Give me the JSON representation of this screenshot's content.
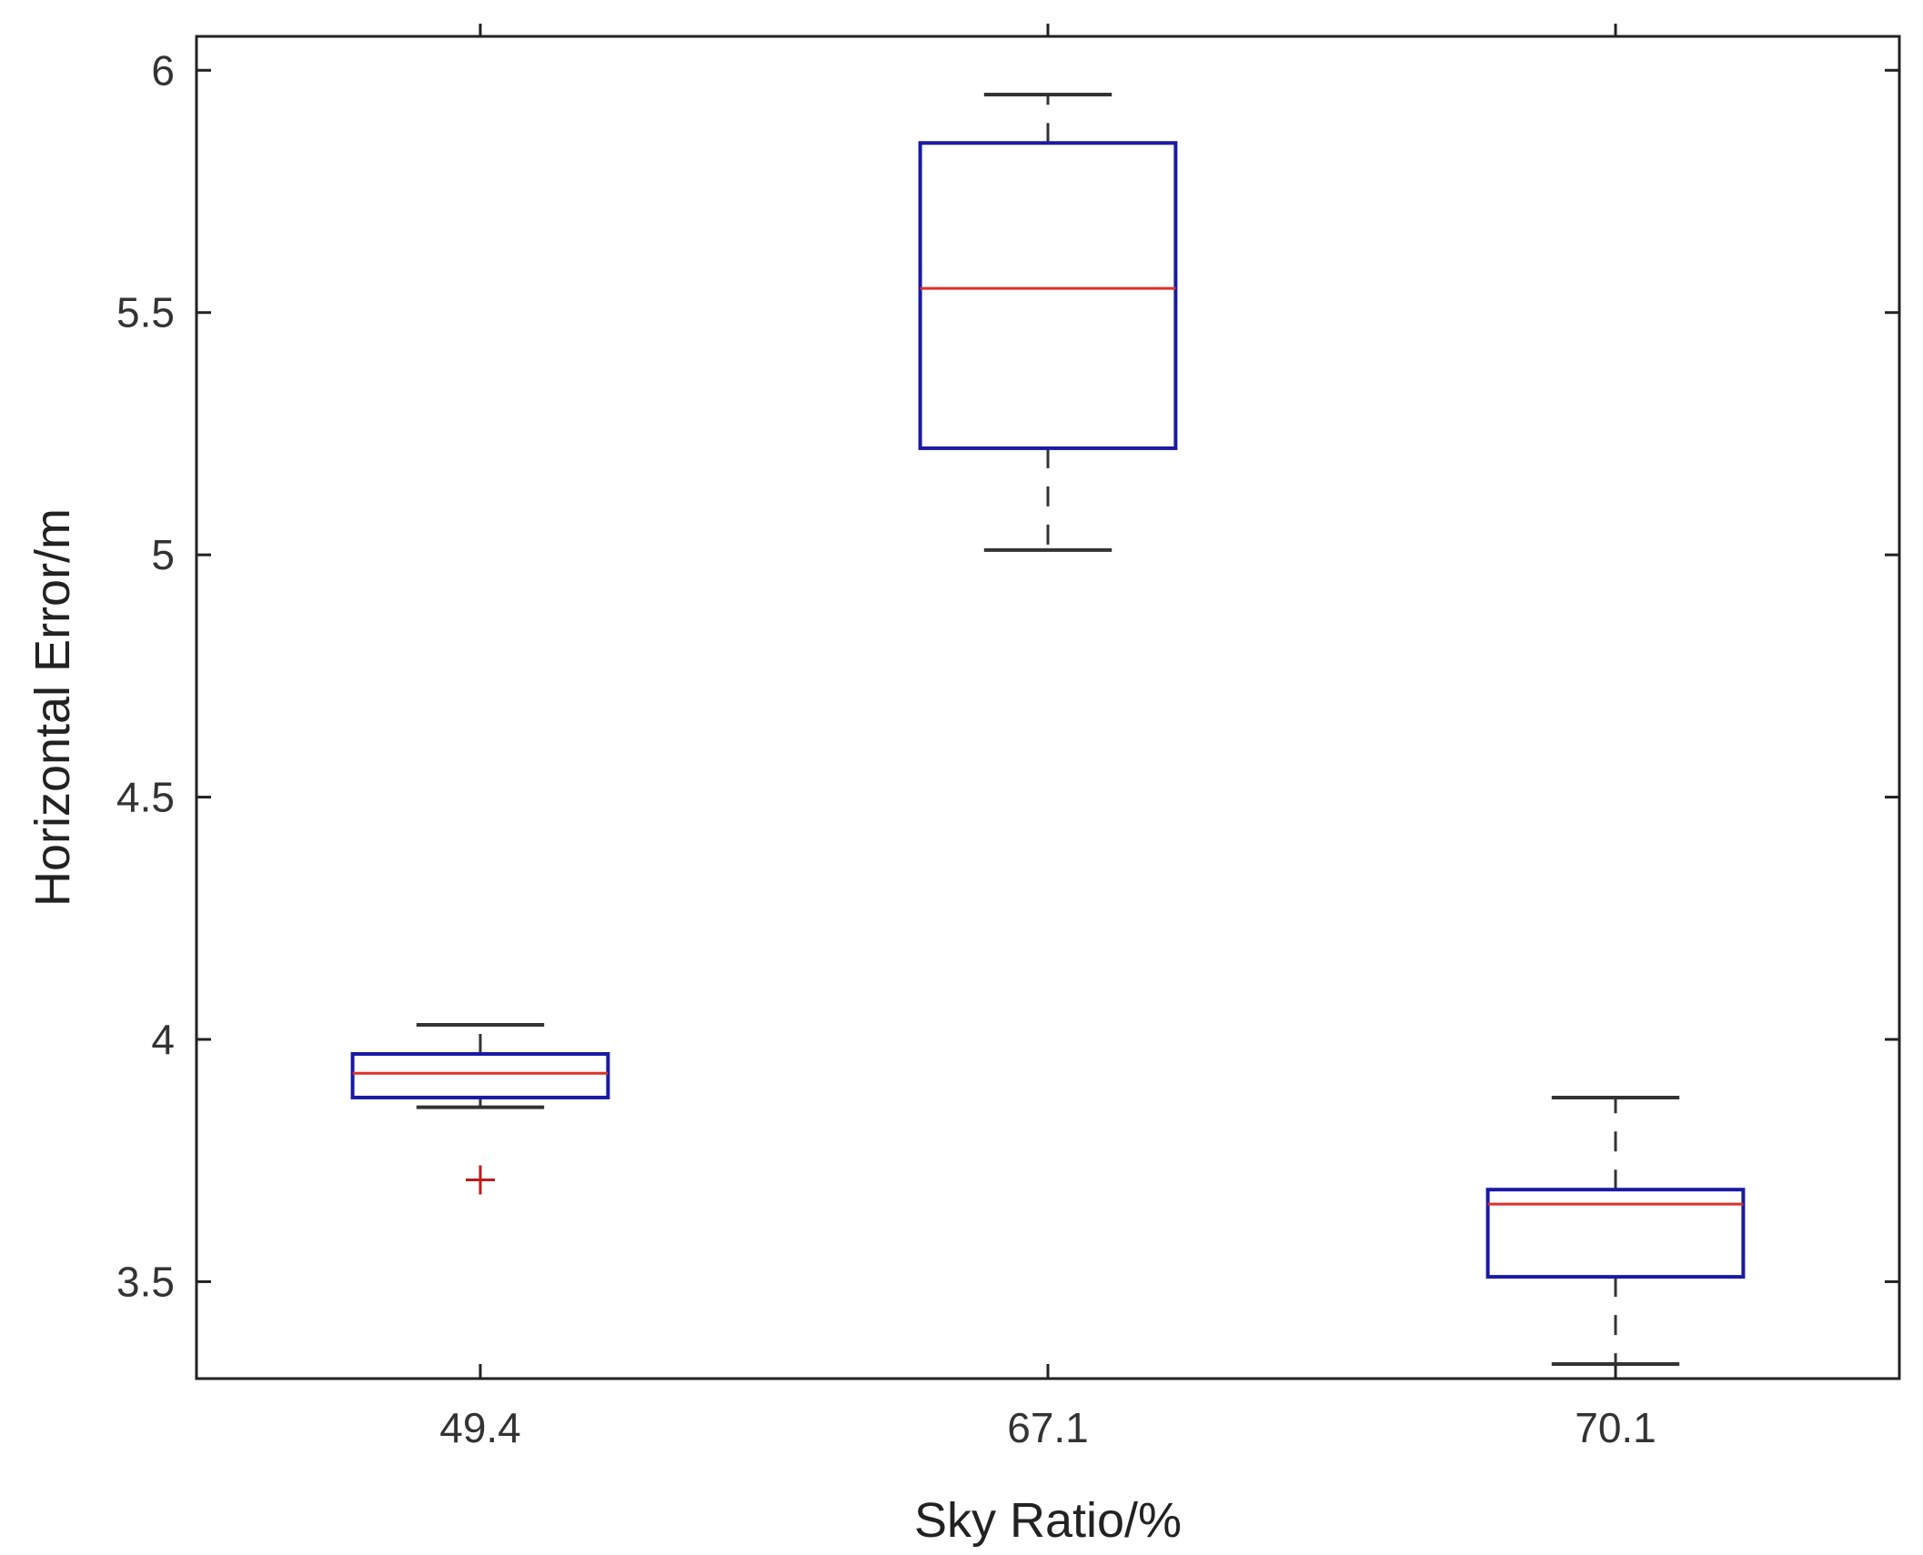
{
  "chart_data": {
    "type": "box",
    "title": "",
    "xlabel": "Sky Ratio/%",
    "ylabel": "Horizontal Error/m",
    "categories": [
      "49.4",
      "67.1",
      "70.1"
    ],
    "ylim": [
      3.3,
      6.07
    ],
    "yticks": [
      3.5,
      4,
      4.5,
      5,
      5.5,
      6
    ],
    "ytick_labels": [
      "3.5",
      "4",
      "4.5",
      "5",
      "5.5",
      "6"
    ],
    "grid": false,
    "legend": "none",
    "boxes": [
      {
        "category": "49.4",
        "whisker_low": 3.86,
        "q1": 3.88,
        "median": 3.93,
        "q3": 3.97,
        "whisker_high": 4.03,
        "outliers": [
          3.71
        ]
      },
      {
        "category": "67.1",
        "whisker_low": 5.01,
        "q1": 5.22,
        "median": 5.55,
        "q3": 5.85,
        "whisker_high": 5.95,
        "outliers": []
      },
      {
        "category": "70.1",
        "whisker_low": 3.33,
        "q1": 3.51,
        "median": 3.66,
        "q3": 3.69,
        "whisker_high": 3.88,
        "outliers": []
      }
    ],
    "colors": {
      "box": "#1a1aa6",
      "median": "#e0302a",
      "whisker": "#333333",
      "outlier": "#c0181a",
      "axis": "#222222"
    }
  }
}
